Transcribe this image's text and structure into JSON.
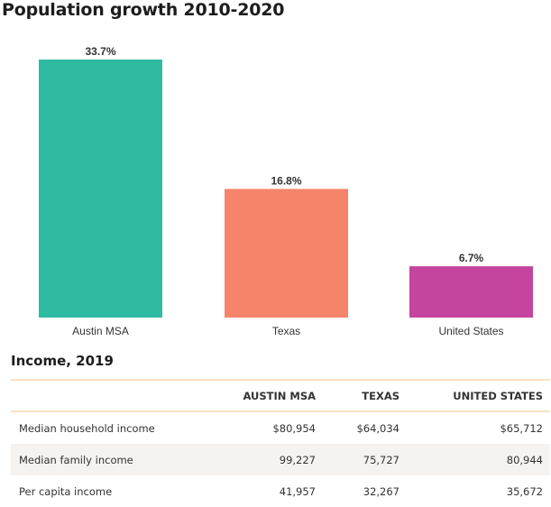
{
  "chart_data": {
    "type": "bar",
    "title": "Population growth 2010-2020",
    "categories": [
      "Austin MSA",
      "Texas",
      "United States"
    ],
    "values": [
      33.7,
      16.8,
      6.7
    ],
    "value_labels": [
      "33.7%",
      "16.8%",
      "6.7%"
    ],
    "colors": [
      "#2ebba2",
      "#f5846a",
      "#c4449e"
    ],
    "xlabel": "",
    "ylabel": "",
    "ylim": [
      0,
      33.7
    ],
    "grid": false
  },
  "income": {
    "title": "Income, 2019",
    "columns": [
      "",
      "AUSTIN MSA",
      "TEXAS",
      "UNITED STATES"
    ],
    "rows": [
      {
        "label": "Median household income",
        "values": [
          "$80,954",
          "$64,034",
          "$65,712"
        ]
      },
      {
        "label": "Median family income",
        "values": [
          "99,227",
          "75,727",
          "80,944"
        ]
      },
      {
        "label": "Per capita income",
        "values": [
          "41,957",
          "32,267",
          "35,672"
        ]
      }
    ]
  }
}
